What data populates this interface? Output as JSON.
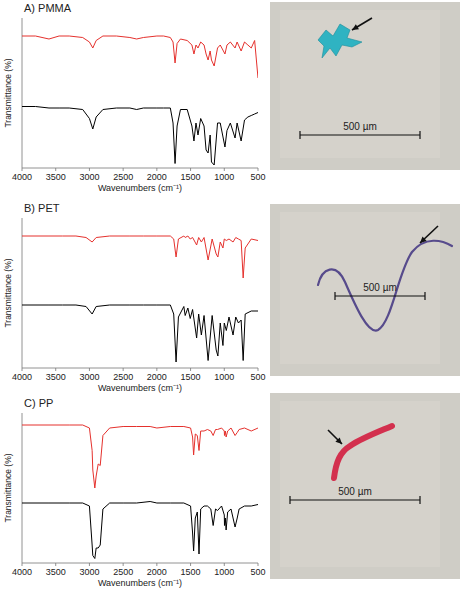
{
  "chart_data": [
    {
      "type": "line",
      "title": "A) PMMA",
      "x_label": "Wavenumbers (cm⁻¹)",
      "y_label": "Transmittance (%)",
      "xlim": [
        4000,
        500
      ],
      "ylim": [
        0,
        100
      ],
      "xticks": [
        4000,
        3500,
        3000,
        2500,
        2000,
        1500,
        1000,
        500
      ],
      "tick_labels": "x",
      "grid": false,
      "annotations": [
        "500 µm"
      ],
      "x": [
        4000,
        3800,
        3600,
        3450,
        3300,
        3100,
        3000,
        2950,
        2900,
        2800,
        2600,
        2400,
        2300,
        2200,
        2000,
        1900,
        1800,
        1760,
        1730,
        1700,
        1650,
        1550,
        1480,
        1450,
        1420,
        1390,
        1350,
        1300,
        1270,
        1240,
        1210,
        1190,
        1150,
        1100,
        1060,
        990,
        960,
        910,
        840,
        810,
        750,
        700,
        650,
        600,
        550,
        500
      ],
      "series": [
        {
          "color": "#e5312d",
          "values": [
            88,
            88,
            86,
            88,
            88,
            87,
            84,
            80,
            85,
            88,
            88,
            87,
            86,
            87,
            88,
            88,
            87,
            84,
            70,
            83,
            86,
            85,
            82,
            76,
            82,
            80,
            84,
            82,
            76,
            72,
            78,
            72,
            68,
            80,
            82,
            76,
            82,
            84,
            80,
            84,
            78,
            84,
            82,
            80,
            85,
            60
          ]
        },
        {
          "color": "#000000",
          "values": [
            41,
            41,
            40,
            40,
            40,
            39,
            33,
            26,
            34,
            39,
            40,
            40,
            39,
            40,
            40,
            40,
            40,
            30,
            3,
            28,
            39,
            39,
            28,
            18,
            30,
            22,
            33,
            28,
            12,
            10,
            22,
            4,
            2,
            30,
            30,
            14,
            25,
            30,
            20,
            30,
            18,
            32,
            34,
            35,
            36,
            37
          ]
        }
      ]
    },
    {
      "type": "line",
      "title": "B) PET",
      "x_label": "Wavenumbers (cm⁻¹)",
      "y_label": "Transmittance (%)",
      "xlim": [
        4000,
        500
      ],
      "ylim": [
        0,
        100
      ],
      "xticks": [
        4000,
        3500,
        3000,
        2500,
        2000,
        1500,
        1000,
        500
      ],
      "tick_labels": "x",
      "grid": false,
      "annotations": [
        "500 µm"
      ],
      "x": [
        4000,
        3600,
        3400,
        3200,
        3050,
        2960,
        2900,
        2700,
        2400,
        2200,
        2000,
        1800,
        1750,
        1715,
        1680,
        1600,
        1580,
        1540,
        1505,
        1470,
        1410,
        1380,
        1340,
        1300,
        1240,
        1180,
        1120,
        1095,
        1060,
        1020,
        1000,
        970,
        930,
        870,
        830,
        790,
        750,
        720,
        690,
        600,
        500
      ],
      "series": [
        {
          "color": "#e5312d",
          "values": [
            88,
            88,
            88,
            88,
            87,
            84,
            87,
            88,
            88,
            88,
            88,
            88,
            86,
            74,
            86,
            88,
            87,
            88,
            86,
            87,
            82,
            87,
            84,
            87,
            72,
            86,
            76,
            74,
            84,
            80,
            86,
            85,
            86,
            84,
            87,
            86,
            85,
            60,
            80,
            86,
            85
          ]
        },
        {
          "color": "#000000",
          "values": [
            42,
            42,
            42,
            42,
            41,
            36,
            41,
            42,
            42,
            42,
            42,
            42,
            36,
            4,
            34,
            41,
            35,
            40,
            33,
            39,
            20,
            36,
            22,
            35,
            5,
            35,
            12,
            8,
            30,
            15,
            30,
            25,
            34,
            22,
            34,
            30,
            32,
            5,
            36,
            38,
            38
          ]
        }
      ]
    },
    {
      "type": "line",
      "title": "C) PP",
      "x_label": "Wavenumbers (cm⁻¹)",
      "y_label": "Transmittance (%)",
      "xlim": [
        4000,
        500
      ],
      "ylim": [
        0,
        100
      ],
      "xticks": [
        4000,
        3500,
        3000,
        2500,
        2000,
        1500,
        1000,
        500
      ],
      "tick_labels": "x",
      "grid": false,
      "annotations": [
        "500 µm"
      ],
      "x": [
        4000,
        3600,
        3300,
        3100,
        3000,
        2960,
        2950,
        2920,
        2900,
        2870,
        2840,
        2800,
        2700,
        2500,
        2300,
        2100,
        2000,
        1800,
        1600,
        1500,
        1470,
        1455,
        1430,
        1400,
        1375,
        1350,
        1300,
        1250,
        1200,
        1165,
        1130,
        1100,
        1040,
        1000,
        997,
        985,
        973,
        950,
        900,
        840,
        808,
        780,
        700,
        600,
        500
      ],
      "series": [
        {
          "color": "#e5312d",
          "values": [
            92,
            92,
            92,
            92,
            90,
            75,
            62,
            50,
            58,
            66,
            65,
            85,
            90,
            91,
            91,
            91,
            90,
            91,
            91,
            90,
            84,
            72,
            86,
            85,
            75,
            88,
            88,
            89,
            88,
            85,
            89,
            89,
            90,
            88,
            85,
            88,
            84,
            88,
            90,
            85,
            87,
            89,
            90,
            88,
            90
          ]
        },
        {
          "color": "#000000",
          "values": [
            40,
            40,
            40,
            40,
            38,
            12,
            5,
            3,
            10,
            10,
            12,
            36,
            40,
            40,
            40,
            41,
            40,
            40,
            40,
            38,
            20,
            8,
            30,
            34,
            6,
            36,
            38,
            38,
            36,
            25,
            36,
            35,
            38,
            32,
            25,
            30,
            22,
            34,
            36,
            24,
            30,
            36,
            38,
            38,
            39
          ]
        }
      ]
    }
  ]
}
